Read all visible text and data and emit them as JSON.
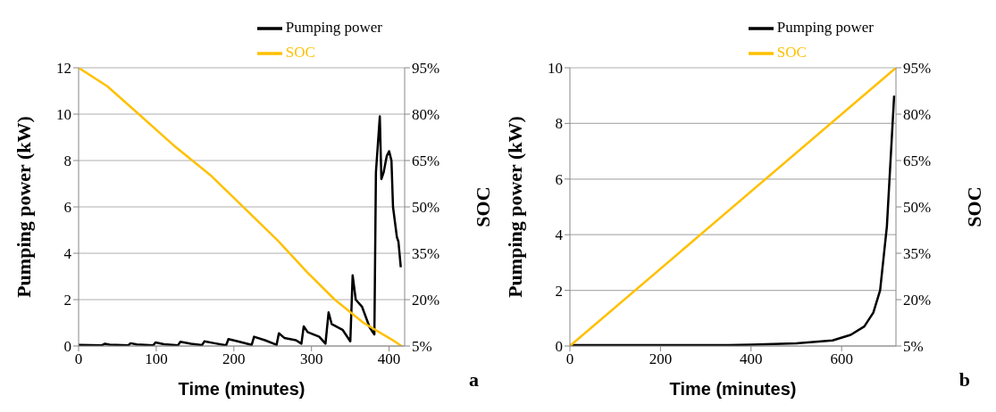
{
  "chart_data": [
    {
      "type": "line",
      "xlabel": "Time (minutes)",
      "ylabel": "Pumping power (kW)",
      "y2label": "SOC",
      "annotations": [
        "a"
      ],
      "xlim": [
        0,
        420
      ],
      "xticks": [
        0,
        100,
        200,
        300,
        400
      ],
      "ylim": [
        0,
        12
      ],
      "yticks": [
        0,
        2,
        4,
        6,
        8,
        10,
        12
      ],
      "y2lim": [
        5,
        95
      ],
      "y2ticks": [
        {
          "value": 5,
          "label": "5%"
        },
        {
          "value": 20,
          "label": "20%"
        },
        {
          "value": 35,
          "label": "35%"
        },
        {
          "value": 50,
          "label": "50%"
        },
        {
          "value": 65,
          "label": "65%"
        },
        {
          "value": 80,
          "label": "80%"
        },
        {
          "value": 95,
          "label": "95%"
        }
      ],
      "grid": "y",
      "legend": "top right",
      "marker": "none",
      "line_style": "solid",
      "series": [
        {
          "name": "Pumping power",
          "color": "#000000",
          "x": [
            0,
            30,
            34,
            40,
            64,
            67,
            75,
            96,
            99,
            110,
            128,
            131,
            145,
            159,
            162,
            175,
            190,
            193,
            205,
            223,
            226,
            240,
            255,
            258,
            265,
            280,
            287,
            290,
            295,
            310,
            318,
            322,
            326,
            340,
            350,
            353,
            357,
            365,
            375,
            381,
            383,
            388,
            390,
            393,
            397,
            400,
            403,
            405,
            410,
            412,
            415
          ],
          "values": [
            0.05,
            0.03,
            0.1,
            0.06,
            0.03,
            0.12,
            0.07,
            0.03,
            0.15,
            0.08,
            0.03,
            0.18,
            0.1,
            0.04,
            0.2,
            0.12,
            0.03,
            0.3,
            0.2,
            0.05,
            0.4,
            0.25,
            0.05,
            0.55,
            0.35,
            0.25,
            0.1,
            0.85,
            0.6,
            0.4,
            0.1,
            1.45,
            0.95,
            0.7,
            0.2,
            3.05,
            2.0,
            1.7,
            0.8,
            0.5,
            7.5,
            9.9,
            7.2,
            7.5,
            8.2,
            8.4,
            8.0,
            6.0,
            4.7,
            4.5,
            3.4
          ]
        },
        {
          "name": "SOC",
          "color": "#ffc000",
          "axis": "y2",
          "x": [
            0,
            37,
            73,
            122,
            171,
            208,
            257,
            294,
            330,
            367,
            404,
            416
          ],
          "values": [
            95,
            89,
            81,
            70,
            60,
            51,
            39,
            29,
            20,
            12.5,
            7,
            5
          ]
        }
      ]
    },
    {
      "type": "line",
      "xlabel": "Time (minutes)",
      "ylabel": "Pumping power (kW)",
      "y2label": "SOC",
      "annotations": [
        "b"
      ],
      "xlim": [
        0,
        720
      ],
      "xticks": [
        0,
        200,
        400,
        600
      ],
      "ylim": [
        0,
        10
      ],
      "yticks": [
        0,
        2,
        4,
        6,
        8,
        10
      ],
      "y2lim": [
        5,
        95
      ],
      "y2ticks": [
        {
          "value": 5,
          "label": "5%"
        },
        {
          "value": 20,
          "label": "20%"
        },
        {
          "value": 35,
          "label": "35%"
        },
        {
          "value": 50,
          "label": "50%"
        },
        {
          "value": 65,
          "label": "65%"
        },
        {
          "value": 80,
          "label": "80%"
        },
        {
          "value": 95,
          "label": "95%"
        }
      ],
      "grid": "y",
      "legend": "top right",
      "marker": "none",
      "line_style": "solid",
      "series": [
        {
          "name": "Pumping power",
          "color": "#000000",
          "x": [
            0,
            350,
            400,
            500,
            580,
            620,
            650,
            670,
            685,
            700,
            716
          ],
          "values": [
            0.03,
            0.03,
            0.05,
            0.1,
            0.2,
            0.4,
            0.7,
            1.2,
            2,
            4.3,
            9
          ]
        },
        {
          "name": "SOC",
          "color": "#ffc000",
          "axis": "y2",
          "x": [
            0,
            720
          ],
          "values": [
            5,
            95
          ]
        }
      ]
    }
  ]
}
